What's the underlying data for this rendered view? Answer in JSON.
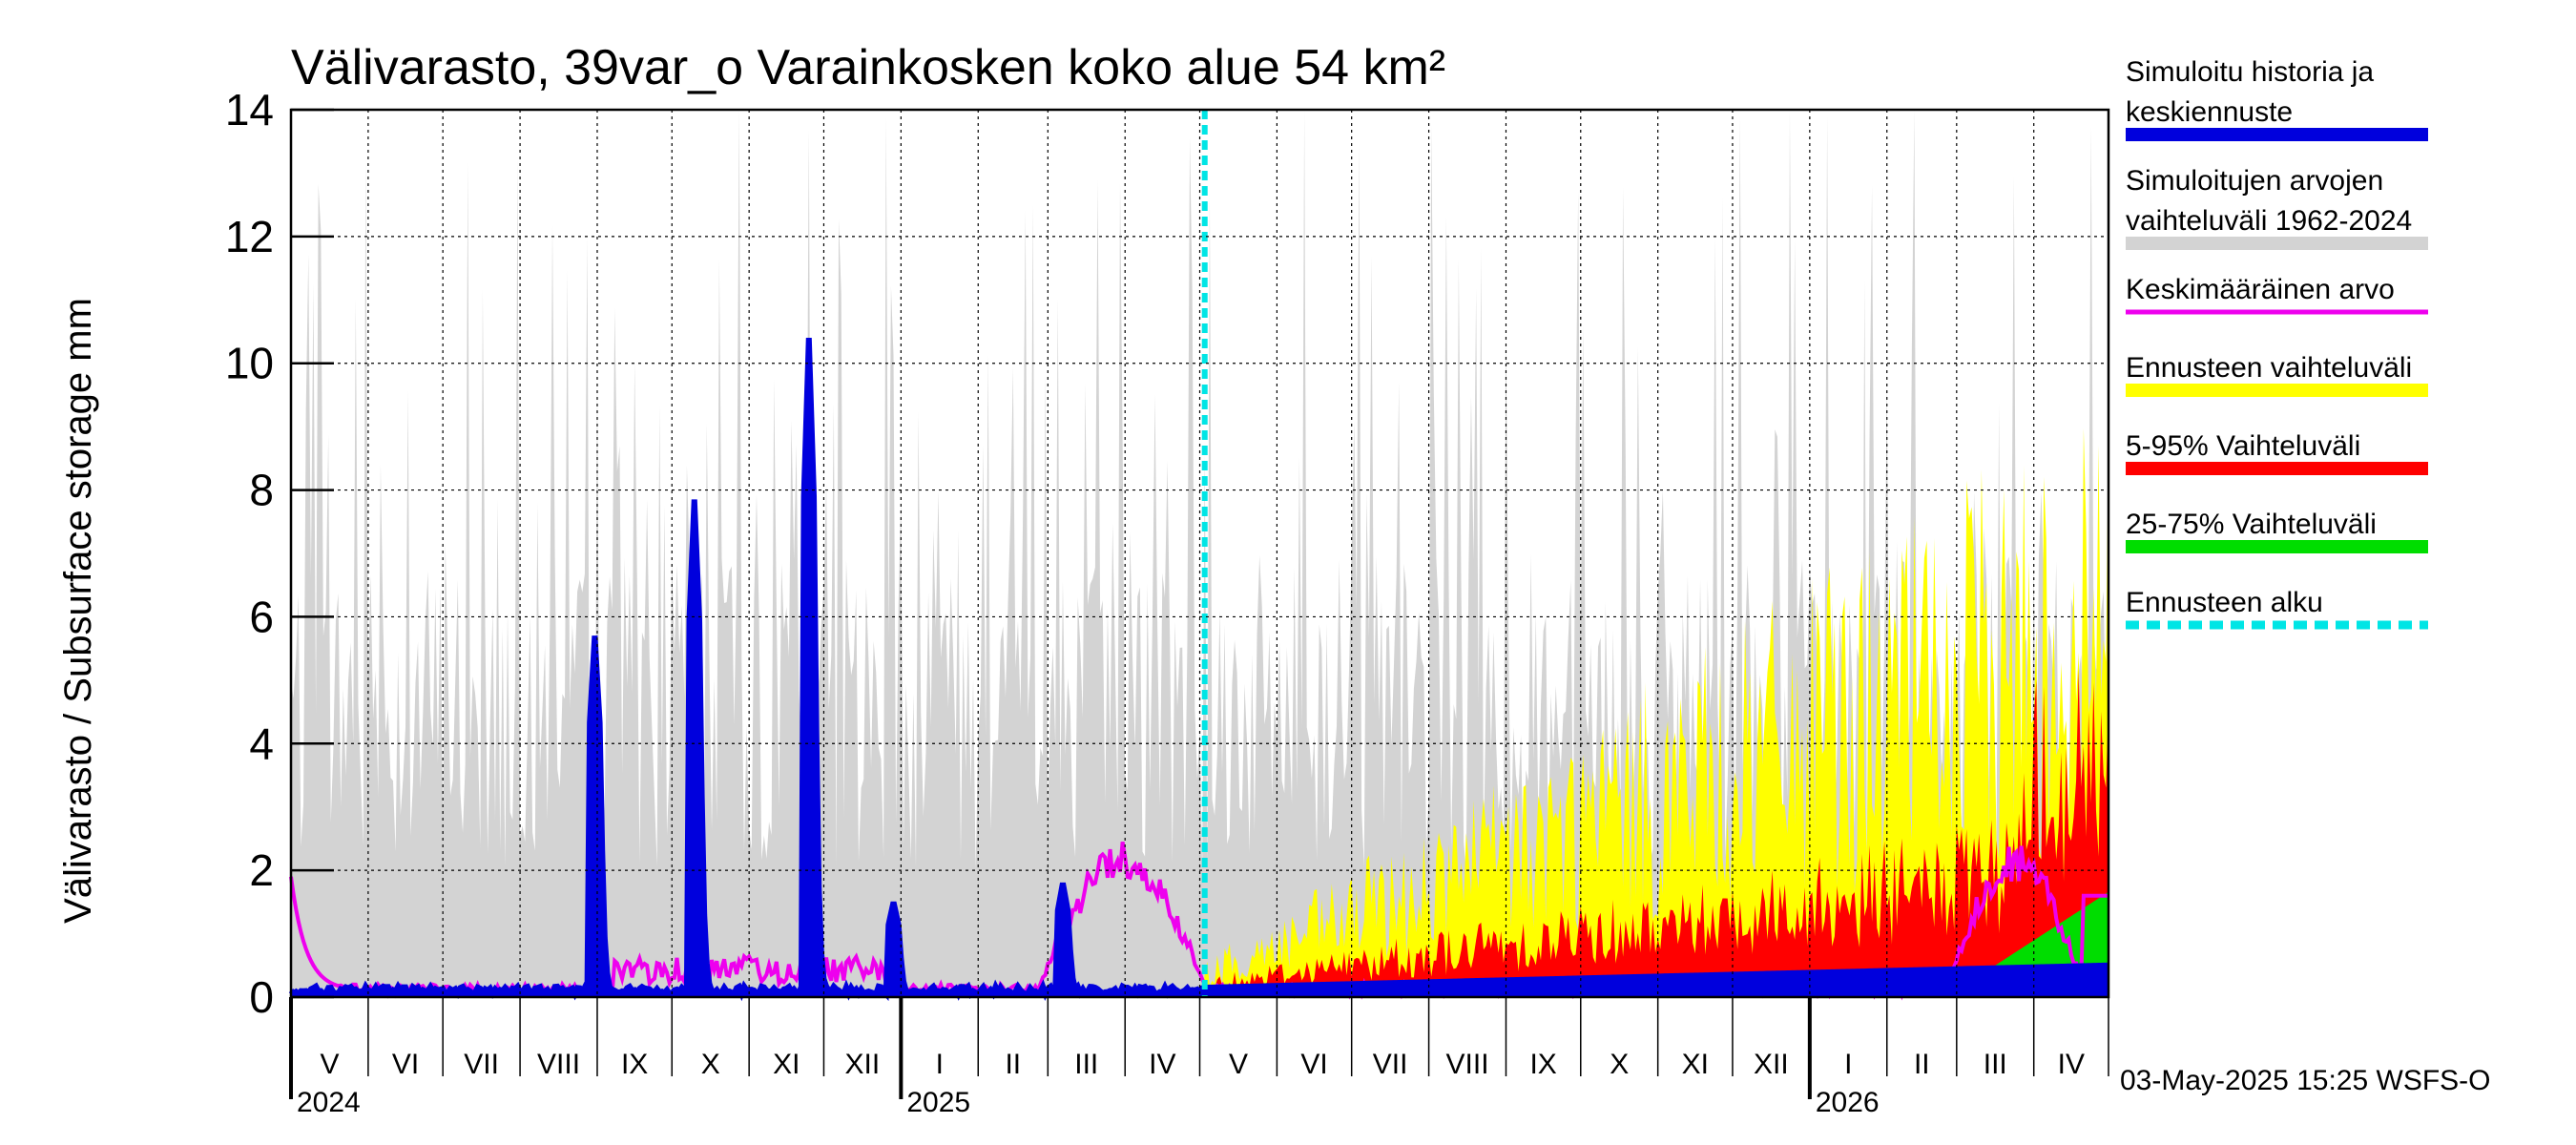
{
  "chart_data": {
    "type": "area",
    "title": "Välivarasto, 39var_o Varainkosken koko alue 54 km²",
    "ylabel": "Välivarasto / Subsurface storage  mm",
    "ylim": [
      0,
      14
    ],
    "yticks": [
      "0",
      "2",
      "4",
      "6",
      "8",
      "10",
      "12",
      "14"
    ],
    "months": [
      {
        "label": "V",
        "day": 0
      },
      {
        "label": "VI",
        "day": 31
      },
      {
        "label": "VII",
        "day": 61
      },
      {
        "label": "VIII",
        "day": 92
      },
      {
        "label": "IX",
        "day": 123
      },
      {
        "label": "X",
        "day": 153
      },
      {
        "label": "XI",
        "day": 184
      },
      {
        "label": "XII",
        "day": 214
      },
      {
        "label": "I",
        "day": 245
      },
      {
        "label": "II",
        "day": 276
      },
      {
        "label": "III",
        "day": 304
      },
      {
        "label": "IV",
        "day": 335
      },
      {
        "label": "V",
        "day": 365
      },
      {
        "label": "VI",
        "day": 396
      },
      {
        "label": "VII",
        "day": 426
      },
      {
        "label": "VIII",
        "day": 457
      },
      {
        "label": "IX",
        "day": 488
      },
      {
        "label": "X",
        "day": 518
      },
      {
        "label": "XI",
        "day": 549
      },
      {
        "label": "XII",
        "day": 579
      },
      {
        "label": "I",
        "day": 610
      },
      {
        "label": "II",
        "day": 641
      },
      {
        "label": "III",
        "day": 669
      },
      {
        "label": "IV",
        "day": 700
      }
    ],
    "years": [
      {
        "label": "2024",
        "day": 0
      },
      {
        "label": "2025",
        "day": 245
      },
      {
        "label": "2026",
        "day": 610
      }
    ],
    "x_end_day": 730,
    "forecast_start_day": 367,
    "history_peaks": [
      {
        "day": 122,
        "value": 5.7
      },
      {
        "day": 162,
        "value": 7.85
      },
      {
        "day": 208,
        "value": 10.4
      },
      {
        "day": 242,
        "value": 1.5
      },
      {
        "day": 310,
        "value": 1.8
      }
    ],
    "series": [
      {
        "name": "Simuloitu historia ja keskiennuste",
        "color": "#0000dd"
      },
      {
        "name": "Simuloitujen arvojen vaihteluväli 1962-2024",
        "color": "#d3d3d3"
      },
      {
        "name": "Keskimääräinen arvo",
        "color": "#ee00ee"
      },
      {
        "name": "Ennusteen vaihteluväli",
        "color": "#ffff00"
      },
      {
        "name": "5-95% Vaihteluväli",
        "color": "#ff0000"
      },
      {
        "name": "25-75% Vaihteluväli",
        "color": "#00dd00"
      },
      {
        "name": "Ennusteen alku",
        "color": "#00e5e5"
      }
    ]
  },
  "legend": [
    {
      "lines": [
        "Simuloitu historia ja",
        "keskiennuste"
      ],
      "color": "#0000dd",
      "style": "solid"
    },
    {
      "lines": [
        "Simuloitujen arvojen",
        "vaihteluväli 1962-2024"
      ],
      "color": "#d3d3d3",
      "style": "solid"
    },
    {
      "lines": [
        "Keskimääräinen arvo"
      ],
      "color": "#ee00ee",
      "style": "thin"
    },
    {
      "lines": [
        "Ennusteen vaihteluväli"
      ],
      "color": "#ffff00",
      "style": "solid"
    },
    {
      "lines": [
        "5-95% Vaihteluväli"
      ],
      "color": "#ff0000",
      "style": "solid"
    },
    {
      "lines": [
        "25-75% Vaihteluväli"
      ],
      "color": "#00dd00",
      "style": "solid"
    },
    {
      "lines": [
        "Ennusteen alku"
      ],
      "color": "#00e5e5",
      "style": "dashed"
    }
  ],
  "footer": "03-May-2025 15:25 WSFS-O"
}
